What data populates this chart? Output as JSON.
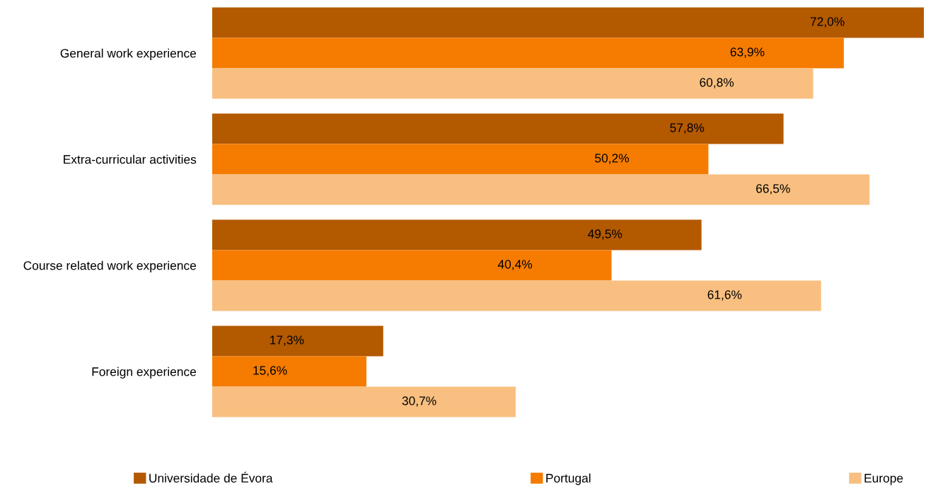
{
  "chart_data": {
    "type": "bar",
    "orientation": "horizontal",
    "categories": [
      "General work experience",
      "Extra-curricular activities",
      "Course related work experience",
      "Foreign experience"
    ],
    "series": [
      {
        "name": "Universidade de Évora",
        "color": "#b35900",
        "values": [
          72.0,
          57.8,
          49.5,
          17.3
        ],
        "value_labels": [
          "72,0%",
          "57,8%",
          "49,5%",
          "17,3%"
        ]
      },
      {
        "name": "Portugal",
        "color": "#f57c00",
        "values": [
          63.9,
          50.2,
          40.4,
          15.6
        ],
        "value_labels": [
          "63,9%",
          "50,2%",
          "40,4%",
          "15,6%"
        ]
      },
      {
        "name": "Europe",
        "color": "#f8bf80",
        "values": [
          60.8,
          66.5,
          61.6,
          30.7
        ],
        "value_labels": [
          "60,8%",
          "66,5%",
          "61,6%",
          "30,7%"
        ]
      }
    ],
    "xlim": [
      0,
      72
    ],
    "tick_labels": "y",
    "grid": false,
    "legend": "bottom"
  }
}
